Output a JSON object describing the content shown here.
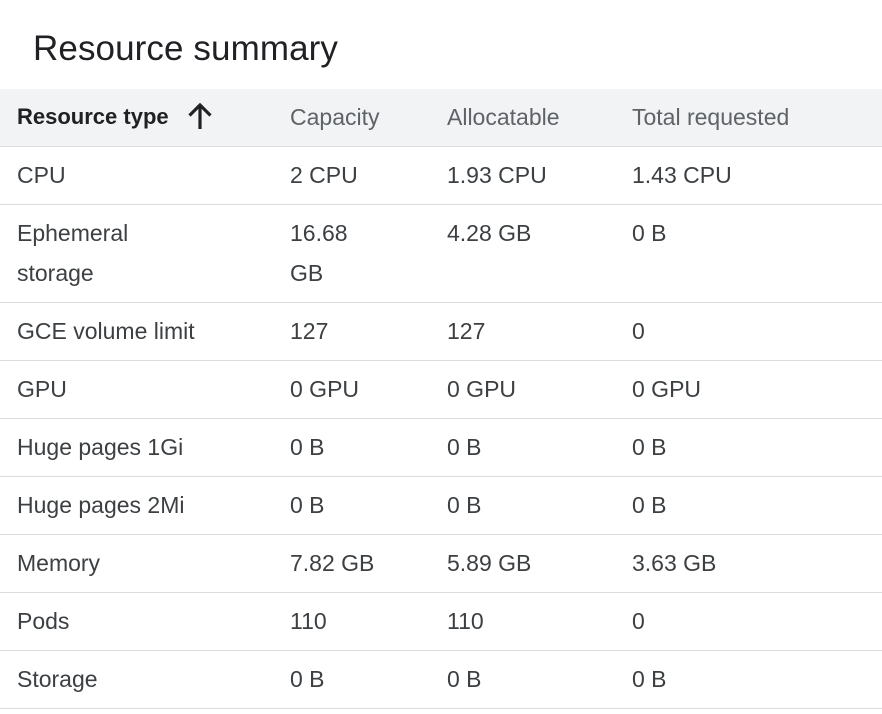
{
  "panel": {
    "title": "Resource summary"
  },
  "table": {
    "headers": {
      "resource_type": "Resource type",
      "capacity": "Capacity",
      "allocatable": "Allocatable",
      "total_requested": "Total requested"
    },
    "sort": {
      "column": "Resource type",
      "direction": "ascending",
      "icon": "arrow-upward-icon"
    },
    "rows": [
      {
        "type": "CPU",
        "capacity": "2 CPU",
        "allocatable": "1.93 CPU",
        "requested": "1.43 CPU"
      },
      {
        "type": "Ephemeral storage",
        "capacity": "16.68 GB",
        "allocatable": "4.28 GB",
        "requested": "0 B"
      },
      {
        "type": "GCE volume limit",
        "capacity": "127",
        "allocatable": "127",
        "requested": "0"
      },
      {
        "type": "GPU",
        "capacity": "0 GPU",
        "allocatable": "0 GPU",
        "requested": "0 GPU"
      },
      {
        "type": "Huge pages 1Gi",
        "capacity": "0 B",
        "allocatable": "0 B",
        "requested": "0 B"
      },
      {
        "type": "Huge pages 2Mi",
        "capacity": "0 B",
        "allocatable": "0 B",
        "requested": "0 B"
      },
      {
        "type": "Memory",
        "capacity": "7.82 GB",
        "allocatable": "5.89 GB",
        "requested": "3.63 GB"
      },
      {
        "type": "Pods",
        "capacity": "110",
        "allocatable": "110",
        "requested": "0"
      },
      {
        "type": "Storage",
        "capacity": "0 B",
        "allocatable": "0 B",
        "requested": "0 B"
      }
    ]
  },
  "colors": {
    "header_bg": "#f1f3f4",
    "divider": "#dadce0",
    "text": "#3c4043",
    "header_text": "#5f6368",
    "title_text": "#202124"
  }
}
